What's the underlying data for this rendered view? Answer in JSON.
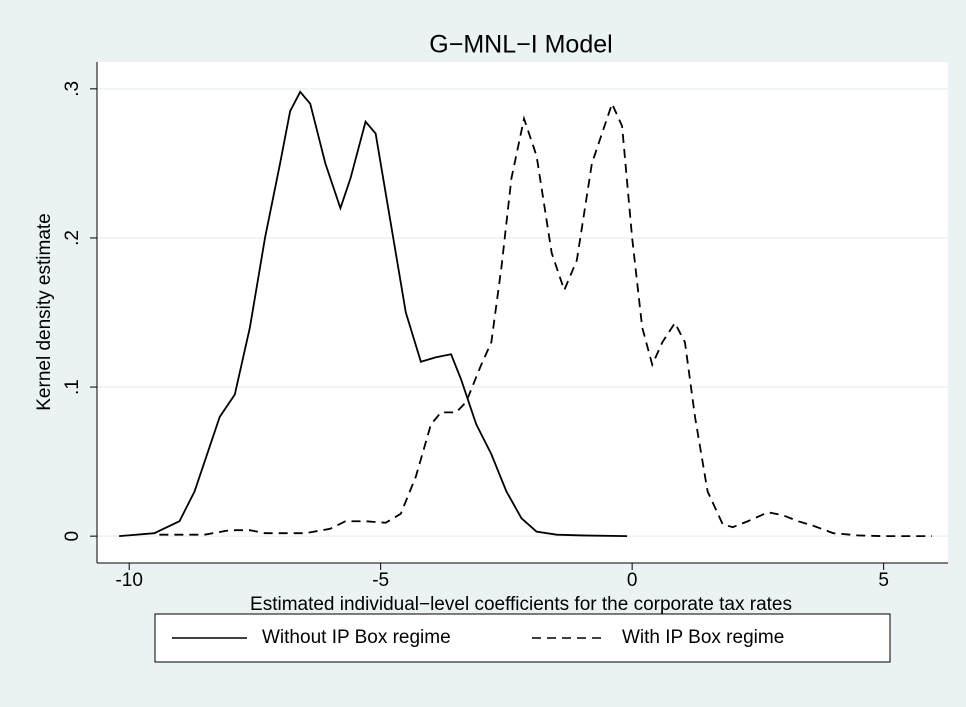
{
  "chart_data": {
    "type": "line",
    "title": "G−MNL−I Model",
    "x_label": "Estimated individual−level coefficients for the corporate tax rates",
    "y_label": "Kernel density estimate",
    "xlim": [
      -10.64,
      6.28
    ],
    "ylim": [
      -0.018,
      0.318
    ],
    "xticks": [
      -10,
      -5,
      0,
      5
    ],
    "yticks": [
      0,
      {
        "value": 0.1,
        "label": ".1"
      },
      {
        "value": 0.2,
        "label": ".2"
      },
      {
        "value": 0.3,
        "label": ".3"
      }
    ],
    "grid": true,
    "legend": "bottom",
    "series": [
      {
        "name": "Without IP Box regime",
        "color": "#000000",
        "dash": "solid",
        "x": [
          -10.2,
          -9.5,
          -9,
          -8.7,
          -8.4,
          -8.2,
          -7.9,
          -7.6,
          -7.3,
          -7.0,
          -6.8,
          -6.6,
          -6.4,
          -6.1,
          -5.8,
          -5.6,
          -5.3,
          -5.1,
          -4.8,
          -4.5,
          -4.2,
          -3.9,
          -3.6,
          -3.4,
          -3.1,
          -2.8,
          -2.5,
          -2.2,
          -1.9,
          -1.5,
          -1.0,
          -0.1
        ],
        "values": [
          0,
          0.002,
          0.01,
          0.03,
          0.06,
          0.08,
          0.095,
          0.14,
          0.2,
          0.25,
          0.285,
          0.298,
          0.29,
          0.25,
          0.22,
          0.24,
          0.278,
          0.27,
          0.21,
          0.15,
          0.117,
          0.12,
          0.122,
          0.105,
          0.075,
          0.055,
          0.03,
          0.012,
          0.003,
          0.001,
          0.0005,
          0
        ]
      },
      {
        "name": "With IP Box regime",
        "color": "#000000",
        "dash": "dashed",
        "x": [
          -9.4,
          -8.5,
          -8,
          -7.6,
          -7.3,
          -6.5,
          -6,
          -5.7,
          -5.3,
          -4.9,
          -4.6,
          -4.3,
          -4.0,
          -3.8,
          -3.5,
          -3.3,
          -3.0,
          -2.8,
          -2.6,
          -2.4,
          -2.15,
          -1.9,
          -1.6,
          -1.35,
          -1.1,
          -0.8,
          -0.4,
          -0.2,
          0,
          0.2,
          0.4,
          0.6,
          0.85,
          1.05,
          1.25,
          1.5,
          1.8,
          2.0,
          2.3,
          2.7,
          3.0,
          3.3,
          3.6,
          4.0,
          4.5,
          5.0,
          5.96
        ],
        "values": [
          0.001,
          0.001,
          0.004,
          0.004,
          0.002,
          0.002,
          0.005,
          0.01,
          0.01,
          0.009,
          0.015,
          0.04,
          0.075,
          0.083,
          0.083,
          0.09,
          0.115,
          0.13,
          0.18,
          0.24,
          0.28,
          0.255,
          0.19,
          0.165,
          0.185,
          0.25,
          0.29,
          0.275,
          0.2,
          0.14,
          0.115,
          0.13,
          0.143,
          0.13,
          0.08,
          0.03,
          0.008,
          0.006,
          0.01,
          0.016,
          0.014,
          0.01,
          0.007,
          0.002,
          0.0005,
          0,
          0
        ]
      }
    ]
  }
}
